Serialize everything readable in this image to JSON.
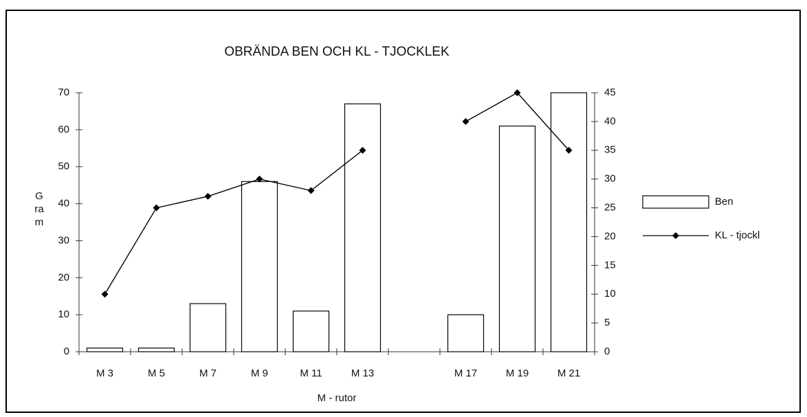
{
  "chart_data": {
    "type": "bar_line",
    "title": "OBRÄNDA BEN OCH KL - TJOCKLEK",
    "x_label": "M - rutor",
    "y_label": "Gram",
    "categories": [
      "M 3",
      "M 5",
      "M 7",
      "M 9",
      "M 11",
      "M 13",
      null,
      "M 17",
      "M 19",
      "M 21"
    ],
    "series": [
      {
        "name": "Ben",
        "type": "bar",
        "color": "#ffffff",
        "values": [
          1,
          1,
          13,
          46,
          11,
          67,
          null,
          10,
          61,
          70
        ]
      },
      {
        "name": "KL - tjockl",
        "type": "line",
        "axis": "y2",
        "color": "#000000",
        "values": [
          10,
          25,
          27,
          30,
          28,
          35,
          null,
          40,
          45,
          35
        ]
      }
    ],
    "ylim": [
      0,
      70
    ],
    "yticks": [
      0,
      10,
      20,
      30,
      40,
      50,
      60,
      70
    ],
    "y2lim": [
      0,
      45
    ],
    "y2ticks": [
      0,
      5,
      10,
      15,
      20,
      25,
      30,
      35,
      40,
      45
    ],
    "grid": false,
    "legend": "right"
  }
}
